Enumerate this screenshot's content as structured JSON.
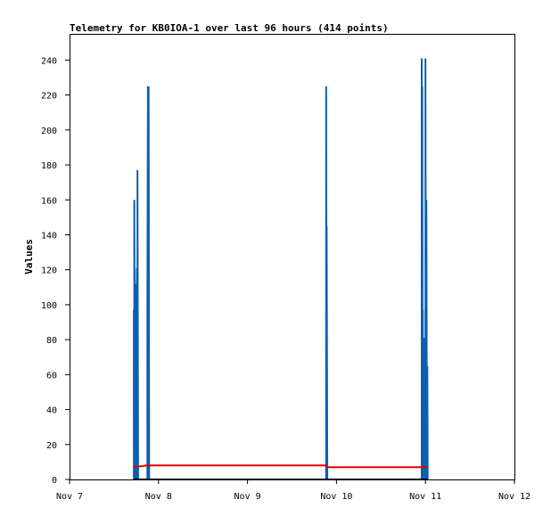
{
  "chart_data": {
    "type": "line",
    "title": "Telemetry for KB0IOA-1 over last 96 hours (414 points)",
    "xlabel": "",
    "ylabel": "Values",
    "xlim": [
      "Nov 7",
      "Nov 12"
    ],
    "ylim": [
      0,
      255
    ],
    "x_ticks": [
      "Nov 7",
      "Nov 8",
      "Nov 9",
      "Nov 10",
      "Nov 11",
      "Nov 12"
    ],
    "y_ticks": [
      0,
      20,
      40,
      60,
      80,
      100,
      120,
      140,
      160,
      180,
      200,
      220,
      240
    ],
    "grid": false,
    "legend": "none",
    "colors": {
      "series_blue": "#0b5fb3",
      "series_red": "#e00000",
      "series_black": "#000000"
    },
    "series": [
      {
        "color": "#0b5fb3",
        "points": [
          {
            "x": "Nov 7 17:20",
            "y": 0
          },
          {
            "x": "Nov 7 17:20",
            "y": 97
          },
          {
            "x": "Nov 7 17:28",
            "y": 0
          },
          {
            "x": "Nov 7 17:28",
            "y": 160
          },
          {
            "x": "Nov 7 17:40",
            "y": 0
          },
          {
            "x": "Nov 7 17:40",
            "y": 49
          },
          {
            "x": "Nov 7 18:00",
            "y": 0
          },
          {
            "x": "Nov 7 18:00",
            "y": 112
          },
          {
            "x": "Nov 7 18:10",
            "y": 0
          },
          {
            "x": "Nov 7 18:10",
            "y": 121
          },
          {
            "x": "Nov 7 18:20",
            "y": 0
          },
          {
            "x": "Nov 7 18:20",
            "y": 177
          },
          {
            "x": "Nov 7 18:30",
            "y": 0
          },
          {
            "x": "Nov 7 21:00",
            "y": 0
          },
          {
            "x": "Nov 7 21:00",
            "y": 97
          },
          {
            "x": "Nov 7 21:08",
            "y": 225
          },
          {
            "x": "Nov 7 21:16",
            "y": 0
          },
          {
            "x": "Nov 7 21:20",
            "y": 225
          },
          {
            "x": "Nov 7 21:28",
            "y": 0
          },
          {
            "x": "Nov 9 21:12",
            "y": 0
          },
          {
            "x": "Nov 9 21:12",
            "y": 225
          },
          {
            "x": "Nov 9 21:22",
            "y": 0
          },
          {
            "x": "Nov 9 21:22",
            "y": 145
          },
          {
            "x": "Nov 9 21:32",
            "y": 0
          },
          {
            "x": "Nov 10 23:00",
            "y": 0
          },
          {
            "x": "Nov 10 23:00",
            "y": 241
          },
          {
            "x": "Nov 10 23:08",
            "y": 0
          },
          {
            "x": "Nov 10 23:08",
            "y": 225
          },
          {
            "x": "Nov 10 23:16",
            "y": 0
          },
          {
            "x": "Nov 10 23:16",
            "y": 97
          },
          {
            "x": "Nov 10 23:24",
            "y": 0
          },
          {
            "x": "Nov 10 23:30",
            "y": 17
          },
          {
            "x": "Nov 10 23:38",
            "y": 0
          },
          {
            "x": "Nov 10 23:38",
            "y": 81
          },
          {
            "x": "Nov 10 23:46",
            "y": 0
          },
          {
            "x": "Nov 11 00:00",
            "y": 0
          },
          {
            "x": "Nov 11 00:00",
            "y": 241
          },
          {
            "x": "Nov 11 00:08",
            "y": 0
          },
          {
            "x": "Nov 11 00:15",
            "y": 160
          },
          {
            "x": "Nov 11 00:22",
            "y": 48
          },
          {
            "x": "Nov 11 00:30",
            "y": 65
          },
          {
            "x": "Nov 11 00:36",
            "y": 0
          }
        ]
      },
      {
        "color": "#e00000",
        "points": [
          {
            "x": "Nov 7 17:20",
            "y": 7
          },
          {
            "x": "Nov 7 21:00",
            "y": 8
          },
          {
            "x": "Nov 9 21:12",
            "y": 8
          },
          {
            "x": "Nov 9 21:32",
            "y": 7
          },
          {
            "x": "Nov 11 00:36",
            "y": 7
          }
        ]
      },
      {
        "color": "#000000",
        "points": [
          {
            "x": "Nov 7 17:20",
            "y": 0
          },
          {
            "x": "Nov 11 00:36",
            "y": 0
          }
        ]
      }
    ]
  }
}
